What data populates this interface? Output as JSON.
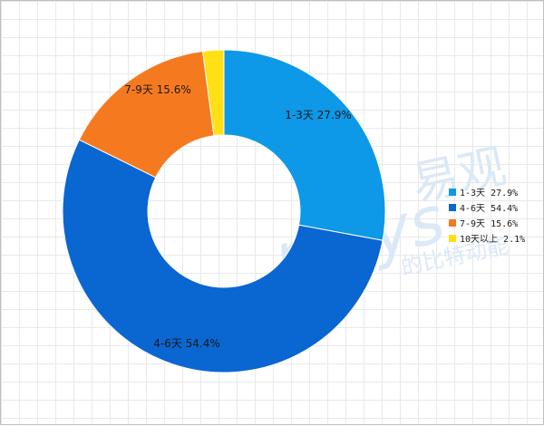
{
  "chart_data": {
    "type": "pie",
    "donut": true,
    "categories": [
      "1-3天",
      "4-6天",
      "7-9天",
      "10天以上"
    ],
    "values": [
      27.9,
      54.4,
      15.6,
      2.1
    ],
    "colors": [
      "#0d99e8",
      "#0a66d1",
      "#f57a1f",
      "#ffe014"
    ],
    "labels": [
      "1-3天 27.9%",
      "4-6天 54.4%",
      "7-9天 15.6%",
      "10天以上 2.1%"
    ],
    "data_labels_shown": [
      "1-3天 27.9%",
      "4-6天 54.4%",
      "7-9天 15.6%"
    ],
    "legend_labels": [
      "1-3天 27.9%",
      "4-6天 54.4%",
      "7-9天 15.6%",
      "10天以上 2.1%"
    ],
    "legend_position": "right",
    "start_direction": "top",
    "direction": "clockwise",
    "grid": true
  },
  "watermark": {
    "brand_cn": "易观",
    "brand_en": "nalys",
    "tagline": "的比特动能"
  }
}
